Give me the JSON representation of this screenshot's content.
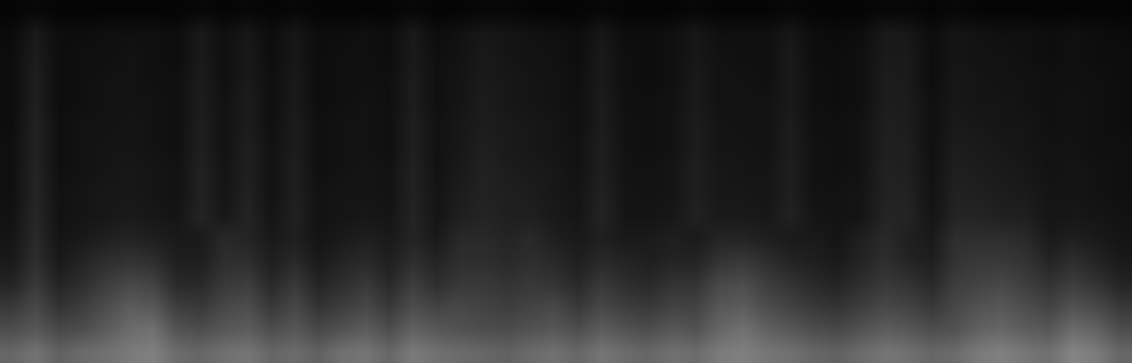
{
  "chart_data": {
    "type": "heatmap",
    "tick_labels": false,
    "grid": false,
    "zlim": [
      0,
      100
    ],
    "z": [
      [
        40,
        45,
        38,
        42,
        44,
        48,
        50,
        42,
        40,
        44,
        46,
        40,
        42,
        38,
        44,
        46,
        40,
        48,
        44,
        42,
        40,
        38,
        42,
        44,
        40,
        46,
        42,
        40,
        44,
        42,
        48,
        50,
        46,
        44,
        40,
        38,
        42,
        46,
        44,
        40,
        42,
        48,
        50,
        46,
        44,
        52,
        48,
        40
      ],
      [
        30,
        34,
        28,
        30,
        36,
        42,
        44,
        32,
        30,
        34,
        36,
        30,
        34,
        28,
        32,
        36,
        30,
        38,
        34,
        32,
        30,
        30,
        32,
        34,
        30,
        36,
        32,
        30,
        34,
        32,
        40,
        44,
        38,
        34,
        30,
        28,
        32,
        36,
        34,
        30,
        32,
        38,
        40,
        36,
        34,
        42,
        38,
        30
      ],
      [
        22,
        28,
        20,
        24,
        30,
        36,
        34,
        24,
        22,
        28,
        30,
        22,
        28,
        20,
        24,
        28,
        22,
        30,
        26,
        28,
        26,
        24,
        26,
        28,
        22,
        28,
        24,
        22,
        26,
        26,
        34,
        36,
        30,
        26,
        22,
        20,
        24,
        28,
        26,
        22,
        28,
        32,
        34,
        30,
        26,
        32,
        28,
        22
      ],
      [
        14,
        22,
        14,
        18,
        24,
        28,
        26,
        16,
        16,
        22,
        24,
        16,
        22,
        14,
        18,
        22,
        16,
        24,
        18,
        22,
        22,
        20,
        22,
        20,
        16,
        22,
        18,
        16,
        20,
        20,
        28,
        30,
        24,
        20,
        16,
        14,
        18,
        22,
        20,
        16,
        24,
        26,
        28,
        24,
        20,
        24,
        20,
        14
      ],
      [
        10,
        18,
        10,
        14,
        18,
        20,
        18,
        12,
        12,
        18,
        18,
        12,
        16,
        10,
        14,
        16,
        12,
        18,
        14,
        18,
        18,
        16,
        18,
        16,
        12,
        16,
        14,
        12,
        14,
        14,
        20,
        22,
        18,
        14,
        12,
        10,
        14,
        18,
        14,
        12,
        20,
        22,
        22,
        20,
        14,
        18,
        14,
        10
      ],
      [
        8,
        16,
        8,
        10,
        12,
        14,
        12,
        10,
        10,
        16,
        14,
        10,
        12,
        8,
        10,
        12,
        10,
        14,
        10,
        16,
        16,
        14,
        16,
        12,
        10,
        12,
        10,
        10,
        12,
        10,
        14,
        14,
        12,
        10,
        10,
        8,
        12,
        16,
        12,
        10,
        18,
        18,
        18,
        16,
        10,
        12,
        10,
        8
      ],
      [
        7,
        15,
        7,
        8,
        9,
        10,
        9,
        8,
        14,
        9,
        14,
        8,
        13,
        7,
        8,
        9,
        8,
        14,
        8,
        12,
        14,
        12,
        12,
        10,
        8,
        14,
        8,
        8,
        9,
        13,
        10,
        10,
        9,
        13,
        8,
        7,
        8,
        14,
        14,
        8,
        14,
        14,
        12,
        12,
        8,
        9,
        8,
        7
      ],
      [
        6,
        14,
        7,
        8,
        9,
        9,
        8,
        7,
        13,
        8,
        13,
        7,
        12,
        7,
        8,
        8,
        7,
        13,
        8,
        11,
        13,
        12,
        11,
        9,
        8,
        13,
        8,
        7,
        8,
        12,
        9,
        9,
        8,
        12,
        7,
        7,
        8,
        13,
        13,
        7,
        13,
        12,
        11,
        10,
        8,
        8,
        7,
        6
      ],
      [
        6,
        14,
        6,
        7,
        8,
        9,
        8,
        7,
        13,
        8,
        12,
        7,
        12,
        6,
        7,
        8,
        7,
        13,
        7,
        10,
        13,
        11,
        10,
        9,
        7,
        12,
        7,
        7,
        8,
        12,
        9,
        8,
        8,
        12,
        7,
        6,
        7,
        13,
        12,
        7,
        12,
        11,
        10,
        9,
        7,
        8,
        7,
        6
      ],
      [
        6,
        13,
        6,
        7,
        8,
        8,
        7,
        6,
        12,
        7,
        12,
        7,
        11,
        6,
        7,
        7,
        6,
        12,
        7,
        9,
        12,
        10,
        9,
        8,
        7,
        12,
        7,
        6,
        7,
        11,
        8,
        8,
        7,
        11,
        7,
        6,
        7,
        12,
        12,
        6,
        11,
        10,
        9,
        8,
        7,
        7,
        6,
        6
      ],
      [
        5,
        13,
        6,
        7,
        7,
        8,
        7,
        6,
        12,
        7,
        11,
        6,
        11,
        6,
        7,
        7,
        6,
        12,
        7,
        9,
        11,
        10,
        9,
        8,
        6,
        11,
        7,
        6,
        7,
        11,
        8,
        7,
        7,
        11,
        6,
        6,
        7,
        12,
        11,
        6,
        10,
        9,
        8,
        8,
        6,
        7,
        6,
        5
      ],
      [
        5,
        12,
        5,
        6,
        7,
        7,
        7,
        6,
        11,
        7,
        11,
        6,
        10,
        5,
        6,
        7,
        6,
        11,
        6,
        8,
        11,
        9,
        8,
        7,
        6,
        11,
        6,
        6,
        7,
        10,
        7,
        7,
        7,
        10,
        6,
        5,
        6,
        11,
        11,
        6,
        9,
        8,
        8,
        7,
        6,
        7,
        6,
        5
      ],
      [
        5,
        12,
        5,
        6,
        7,
        7,
        6,
        6,
        11,
        6,
        10,
        6,
        10,
        5,
        6,
        6,
        6,
        11,
        6,
        8,
        10,
        9,
        8,
        7,
        6,
        10,
        6,
        5,
        6,
        10,
        7,
        7,
        6,
        10,
        6,
        5,
        6,
        11,
        10,
        5,
        9,
        8,
        7,
        7,
        6,
        6,
        6,
        5
      ],
      [
        5,
        11,
        5,
        6,
        6,
        7,
        6,
        5,
        10,
        6,
        10,
        5,
        9,
        5,
        6,
        6,
        5,
        10,
        6,
        7,
        10,
        8,
        7,
        7,
        5,
        10,
        6,
        5,
        6,
        9,
        7,
        6,
        6,
        10,
        5,
        5,
        6,
        10,
        10,
        5,
        8,
        7,
        7,
        6,
        5,
        6,
        5,
        5
      ],
      [
        4,
        10,
        5,
        5,
        6,
        6,
        6,
        5,
        10,
        6,
        9,
        5,
        9,
        5,
        5,
        6,
        5,
        10,
        5,
        7,
        9,
        8,
        7,
        6,
        5,
        9,
        5,
        5,
        6,
        9,
        6,
        6,
        6,
        9,
        5,
        4,
        5,
        10,
        9,
        5,
        8,
        7,
        6,
        6,
        5,
        6,
        5,
        4
      ],
      [
        2,
        3,
        2,
        2,
        2,
        2,
        2,
        2,
        3,
        2,
        3,
        2,
        3,
        2,
        2,
        2,
        2,
        3,
        2,
        2,
        3,
        3,
        2,
        2,
        2,
        3,
        2,
        2,
        2,
        3,
        2,
        2,
        2,
        3,
        2,
        2,
        2,
        3,
        3,
        2,
        3,
        2,
        2,
        2,
        2,
        2,
        2,
        2
      ]
    ]
  }
}
